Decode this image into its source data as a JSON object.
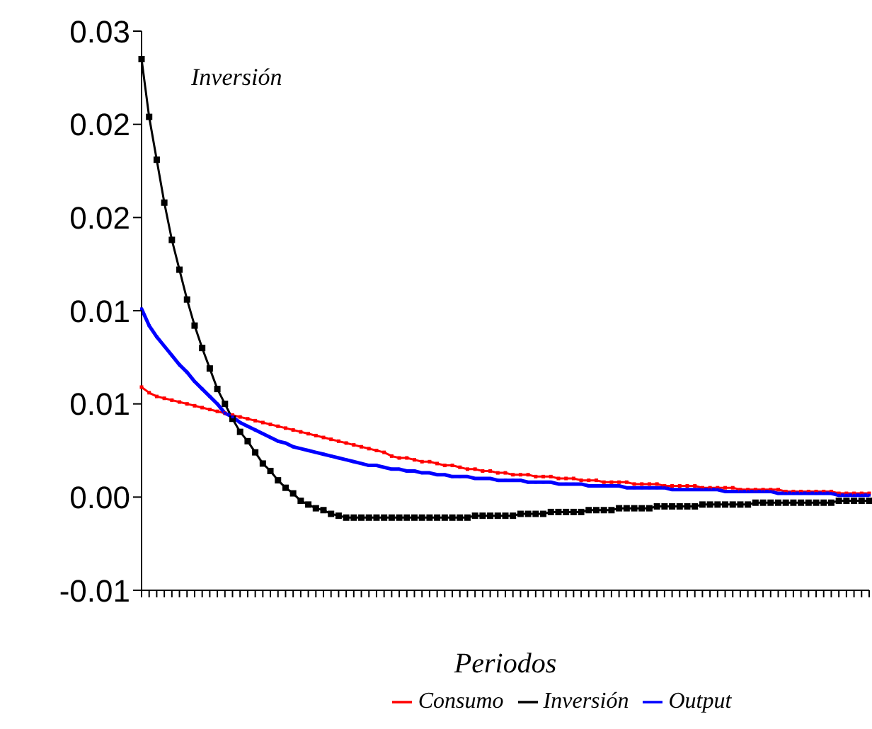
{
  "chart_data": {
    "type": "line",
    "xlabel": "Periodos",
    "annotations": [
      "Inversión"
    ],
    "categories": [
      null,
      null,
      null,
      null,
      null,
      null,
      null,
      null,
      null,
      null,
      null,
      null,
      null,
      null,
      null,
      null,
      null,
      null,
      null,
      null,
      null,
      null,
      null,
      null,
      null,
      null,
      null,
      null,
      null,
      null,
      null,
      null,
      null,
      null,
      null,
      null,
      null,
      null,
      null,
      null,
      null,
      null,
      null,
      null,
      null,
      null,
      null,
      null,
      null,
      null,
      null,
      null,
      null,
      null,
      null,
      null,
      null,
      null,
      null,
      null,
      null,
      null,
      null,
      null,
      null,
      null,
      null,
      null,
      null,
      null,
      null,
      null,
      null,
      null,
      null,
      null,
      null,
      null,
      null,
      null,
      null,
      null,
      null,
      null,
      null,
      null,
      null,
      null,
      null,
      null,
      null,
      null,
      null,
      null,
      null,
      null,
      null
    ],
    "ylim": [
      -0.005,
      0.025
    ],
    "yticks": [
      {
        "value": -0.005,
        "label": "-0.01"
      },
      {
        "value": 0,
        "label": "0.00"
      },
      {
        "value": 0.005,
        "label": "0.01"
      },
      {
        "value": 0.01,
        "label": "0.01"
      },
      {
        "value": 0.015,
        "label": "0.02"
      },
      {
        "value": 0.02,
        "label": "0.02"
      },
      {
        "value": 0.025,
        "label": "0.03"
      }
    ],
    "grid": false,
    "legend": "bottom",
    "marker": "square",
    "series": [
      {
        "name": "Consumo",
        "color": "#ff0000",
        "values": [
          0.0059,
          0.0056,
          0.0054,
          0.0053,
          0.0052,
          0.0051,
          0.005,
          0.0049,
          0.0048,
          0.0047,
          0.0046,
          0.0045,
          0.0044,
          0.0043,
          0.0042,
          0.0041,
          0.004,
          0.0039,
          0.0038,
          0.0037,
          0.0036,
          0.0035,
          0.0034,
          0.0033,
          0.0032,
          0.0031,
          0.003,
          0.0029,
          0.0028,
          0.0027,
          0.0026,
          0.0025,
          0.0024,
          0.0022,
          0.0021,
          0.0021,
          0.002,
          0.0019,
          0.0019,
          0.0018,
          0.0017,
          0.0017,
          0.0016,
          0.0015,
          0.0015,
          0.0014,
          0.0014,
          0.0013,
          0.0013,
          0.0012,
          0.0012,
          0.0012,
          0.0011,
          0.0011,
          0.0011,
          0.001,
          0.001,
          0.001,
          0.0009,
          0.0009,
          0.0009,
          0.0008,
          0.0008,
          0.0008,
          0.0008,
          0.0007,
          0.0007,
          0.0007,
          0.0007,
          0.0006,
          0.0006,
          0.0006,
          0.0006,
          0.0006,
          0.0005,
          0.0005,
          0.0005,
          0.0005,
          0.0005,
          0.0004,
          0.0004,
          0.0004,
          0.0004,
          0.0004,
          0.0004,
          0.0003,
          0.0003,
          0.0003,
          0.0003,
          0.0003,
          0.0003,
          0.0003,
          0.0002,
          0.0002,
          0.0002,
          0.0002,
          0.0002
        ]
      },
      {
        "name": "Inversión",
        "color": "#000000",
        "values": [
          0.0235,
          0.0204,
          0.0181,
          0.0158,
          0.0138,
          0.0122,
          0.0106,
          0.0092,
          0.008,
          0.0069,
          0.0058,
          0.005,
          0.0042,
          0.0035,
          0.003,
          0.0024,
          0.0018,
          0.0014,
          0.0009,
          0.0005,
          0.0002,
          -0.0002,
          -0.0004,
          -0.0006,
          -0.0007,
          -0.0009,
          -0.001,
          -0.0011,
          -0.0011,
          -0.0011,
          -0.0011,
          -0.0011,
          -0.0011,
          -0.0011,
          -0.0011,
          -0.0011,
          -0.0011,
          -0.0011,
          -0.0011,
          -0.0011,
          -0.0011,
          -0.0011,
          -0.0011,
          -0.0011,
          -0.001,
          -0.001,
          -0.001,
          -0.001,
          -0.001,
          -0.001,
          -0.0009,
          -0.0009,
          -0.0009,
          -0.0009,
          -0.0008,
          -0.0008,
          -0.0008,
          -0.0008,
          -0.0008,
          -0.0007,
          -0.0007,
          -0.0007,
          -0.0007,
          -0.0006,
          -0.0006,
          -0.0006,
          -0.0006,
          -0.0006,
          -0.0005,
          -0.0005,
          -0.0005,
          -0.0005,
          -0.0005,
          -0.0005,
          -0.0004,
          -0.0004,
          -0.0004,
          -0.0004,
          -0.0004,
          -0.0004,
          -0.0004,
          -0.0003,
          -0.0003,
          -0.0003,
          -0.0003,
          -0.0003,
          -0.0003,
          -0.0003,
          -0.0003,
          -0.0003,
          -0.0003,
          -0.0003,
          -0.0002,
          -0.0002,
          -0.0002,
          -0.0002,
          -0.0002
        ]
      },
      {
        "name": "Output",
        "color": "#0000ff",
        "values": [
          0.0101,
          0.0092,
          0.0086,
          0.0081,
          0.0076,
          0.0071,
          0.0067,
          0.0062,
          0.0058,
          0.0054,
          0.005,
          0.0045,
          0.0043,
          0.004,
          0.0038,
          0.0036,
          0.0034,
          0.0032,
          0.003,
          0.0029,
          0.0027,
          0.0026,
          0.0025,
          0.0024,
          0.0023,
          0.0022,
          0.0021,
          0.002,
          0.0019,
          0.0018,
          0.0017,
          0.0017,
          0.0016,
          0.0015,
          0.0015,
          0.0014,
          0.0014,
          0.0013,
          0.0013,
          0.0012,
          0.0012,
          0.0011,
          0.0011,
          0.0011,
          0.001,
          0.001,
          0.001,
          0.0009,
          0.0009,
          0.0009,
          0.0009,
          0.0008,
          0.0008,
          0.0008,
          0.0008,
          0.0007,
          0.0007,
          0.0007,
          0.0007,
          0.0006,
          0.0006,
          0.0006,
          0.0006,
          0.0006,
          0.0005,
          0.0005,
          0.0005,
          0.0005,
          0.0005,
          0.0005,
          0.0004,
          0.0004,
          0.0004,
          0.0004,
          0.0004,
          0.0004,
          0.0004,
          0.0003,
          0.0003,
          0.0003,
          0.0003,
          0.0003,
          0.0003,
          0.0003,
          0.0002,
          0.0002,
          0.0002,
          0.0002,
          0.0002,
          0.0002,
          0.0002,
          0.0002,
          0.0001,
          0.0001,
          0.0001,
          0.0001,
          0.0001
        ]
      }
    ]
  }
}
